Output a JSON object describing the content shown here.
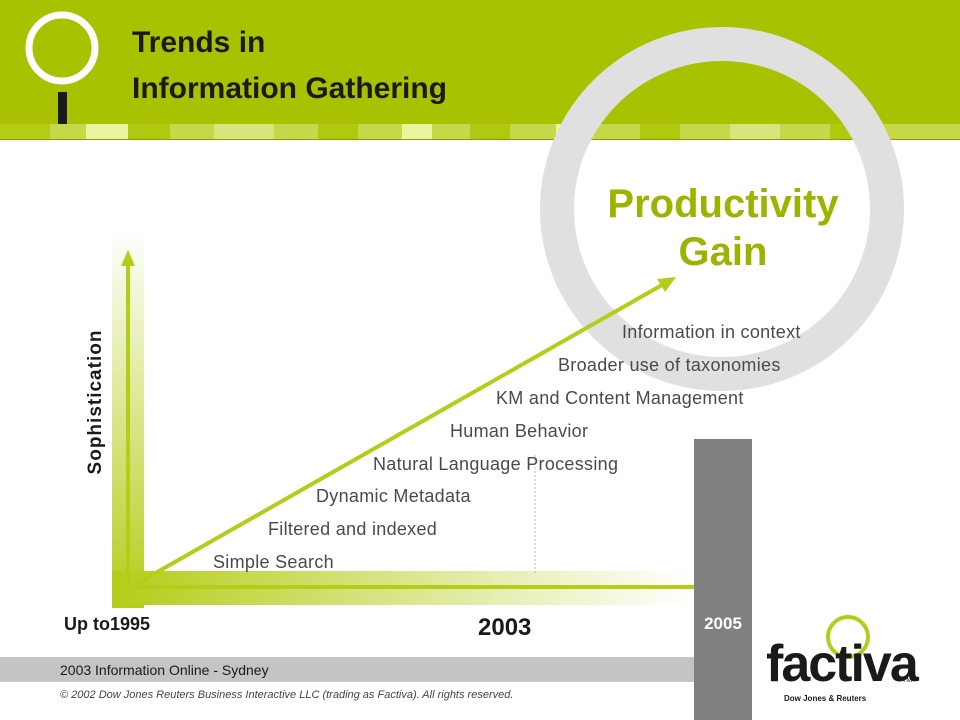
{
  "header": {
    "title_line1": "Trends in",
    "title_line2": "Information Gathering"
  },
  "diagram": {
    "headline_line1": "Productivity",
    "headline_line2": "Gain",
    "y_axis_label": "Sophistication",
    "x_labels": {
      "start": "Up to1995",
      "middle": "2003",
      "end": "2005"
    },
    "stages": [
      "Simple Search",
      "Filtered and indexed",
      "Dynamic Metadata",
      "Natural Language Processing",
      "Human Behavior",
      "KM and Content Management",
      "Broader use of taxonomies",
      "Information in context"
    ]
  },
  "footer": {
    "event": "2003 Information Online - Sydney",
    "copyright": "© 2002 Dow Jones Reuters Business Interactive LLC (trading as Factiva). All rights reserved."
  },
  "logo": {
    "name": "factiva",
    "tm": "TM",
    "tagline": "Dow Jones & Reuters"
  },
  "colors": {
    "brand_green": "#a8c100",
    "headline_green": "#9cb400",
    "arrow_green": "#b5cc18",
    "ring_gray": "#e0e0e0",
    "bar_gray": "#808080"
  }
}
